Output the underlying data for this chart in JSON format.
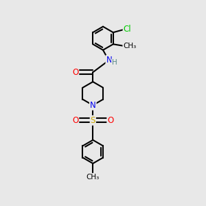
{
  "background_color": "#e8e8e8",
  "bond_color": "#000000",
  "bond_width": 1.5,
  "atom_colors": {
    "N": "#0000ee",
    "O": "#ff0000",
    "S": "#ccaa00",
    "Cl": "#00cc00",
    "H": "#558888",
    "C": "#000000"
  },
  "font_size": 8.5,
  "fig_width": 3.0,
  "fig_height": 3.0,
  "xlim": [
    0,
    10
  ],
  "ylim": [
    0,
    10
  ]
}
